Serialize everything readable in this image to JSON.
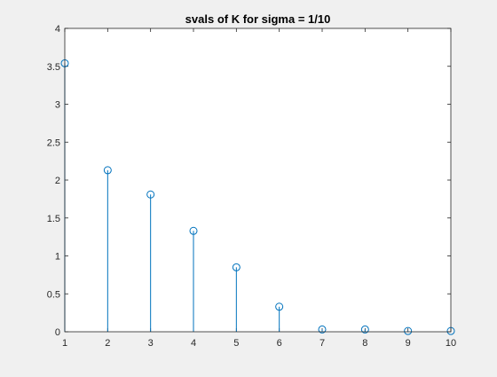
{
  "chart_data": {
    "type": "stem",
    "title": "svals of K for sigma = 1/10",
    "xlabel": "",
    "ylabel": "",
    "xlim": [
      1,
      10
    ],
    "ylim": [
      0,
      4
    ],
    "xticks": [
      1,
      2,
      3,
      4,
      5,
      6,
      7,
      8,
      9,
      10
    ],
    "yticks": [
      0,
      0.5,
      1,
      1.5,
      2,
      2.5,
      3,
      3.5,
      4
    ],
    "xtick_labels": [
      "1",
      "2",
      "3",
      "4",
      "5",
      "6",
      "7",
      "8",
      "9",
      "10"
    ],
    "ytick_labels": [
      "0",
      "0.5",
      "1",
      "1.5",
      "2",
      "2.5",
      "3",
      "3.5",
      "4"
    ],
    "grid": false,
    "marker": "circle",
    "series": [
      {
        "x": [
          1,
          2,
          3,
          4,
          5,
          6,
          7,
          8,
          9,
          10
        ],
        "values": [
          3.54,
          2.13,
          1.81,
          1.33,
          0.85,
          0.33,
          0.03,
          0.03,
          0.01,
          0.01
        ],
        "color": "#0072bd"
      }
    ],
    "colors": {
      "axis": "#262626",
      "plot_background": "#ffffff",
      "figure_background": "#f0f0f0",
      "stem": "#0072bd"
    }
  }
}
